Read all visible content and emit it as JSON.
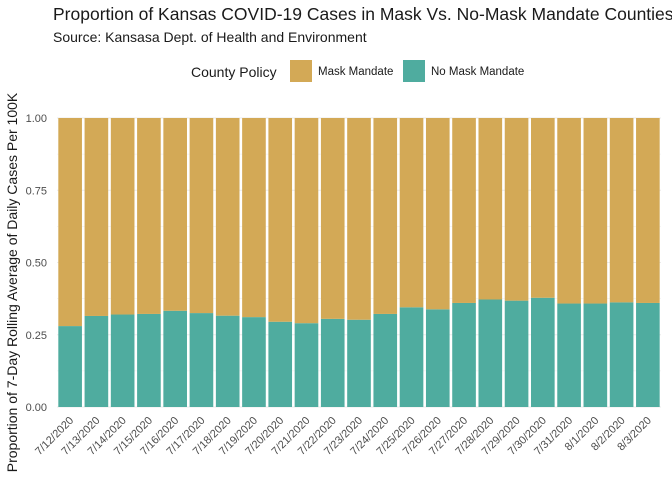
{
  "chart_data": {
    "type": "bar",
    "stacked": true,
    "title": "Proportion of Kansas COVID-19 Cases in Mask Vs. No-Mask Mandate Counties",
    "subtitle": "Source: Kansasa Dept. of Health and Environment",
    "xlabel": "",
    "ylabel": "Proportion of 7-Day Rolling Average of Daily Cases Per 100K",
    "ylim": [
      0,
      1
    ],
    "yticks": [
      "0.00",
      "0.25",
      "0.50",
      "0.75",
      "1.00"
    ],
    "grid": true,
    "legend": {
      "title": "County Policy",
      "position": "top"
    },
    "categories": [
      "7/12/2020",
      "7/13/2020",
      "7/14/2020",
      "7/15/2020",
      "7/16/2020",
      "7/17/2020",
      "7/18/2020",
      "7/19/2020",
      "7/20/2020",
      "7/21/2020",
      "7/22/2020",
      "7/23/2020",
      "7/24/2020",
      "7/25/2020",
      "7/26/2020",
      "7/27/2020",
      "7/28/2020",
      "7/29/2020",
      "7/30/2020",
      "7/31/2020",
      "8/1/2020",
      "8/2/2020",
      "8/3/2020"
    ],
    "series": [
      {
        "name": "No Mask Mandate",
        "color": "#4fac9f",
        "values": [
          0.28,
          0.315,
          0.32,
          0.322,
          0.333,
          0.325,
          0.316,
          0.311,
          0.295,
          0.29,
          0.305,
          0.302,
          0.322,
          0.345,
          0.338,
          0.36,
          0.372,
          0.368,
          0.378,
          0.358,
          0.358,
          0.362,
          0.36
        ]
      },
      {
        "name": "Mask Mandate",
        "color": "#d3a956",
        "values": [
          0.72,
          0.685,
          0.68,
          0.678,
          0.667,
          0.675,
          0.684,
          0.689,
          0.705,
          0.71,
          0.695,
          0.698,
          0.678,
          0.655,
          0.662,
          0.64,
          0.628,
          0.632,
          0.622,
          0.642,
          0.642,
          0.638,
          0.64
        ]
      }
    ]
  }
}
